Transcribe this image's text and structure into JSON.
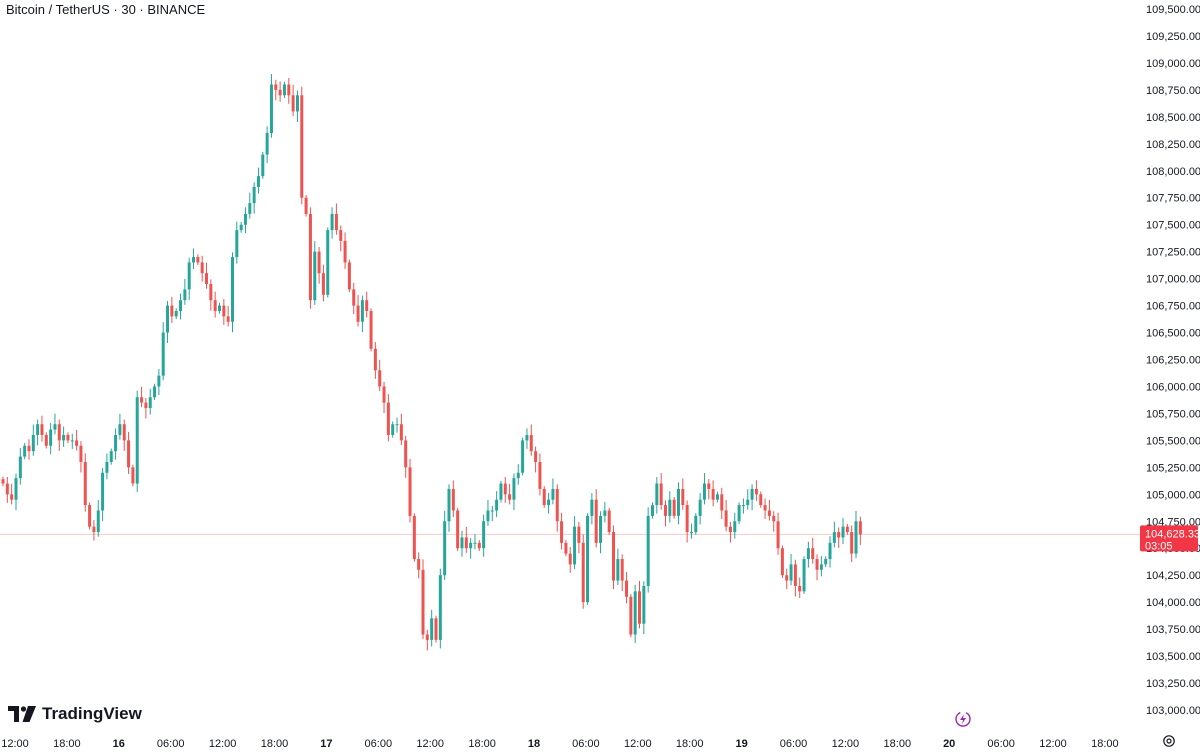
{
  "header": {
    "symbol_title": "Bitcoin / TetherUS · 30 · BINANCE"
  },
  "branding": {
    "logo_text": "TradingView"
  },
  "icons": {
    "logo": "tradingview-logo-icon",
    "bolt": "lightning-icon",
    "settings": "gear-icon"
  },
  "colors": {
    "up": "#26a69a",
    "down": "#ef5350",
    "price_tag": "#f23645",
    "current_line": "#f7c9c9",
    "bolt": "#9c27b0"
  },
  "chart_data": {
    "type": "candlestick",
    "title": "Bitcoin / TetherUS · 30 · BINANCE",
    "interval": "30",
    "exchange": "BINANCE",
    "ylim": [
      102900,
      109550
    ],
    "y_ticks": [
      103000,
      103250,
      103500,
      103750,
      104000,
      104250,
      104500,
      104750,
      105000,
      105250,
      105500,
      105750,
      106000,
      106250,
      106500,
      106750,
      107000,
      107250,
      107500,
      107750,
      108000,
      108250,
      108500,
      108750,
      109000,
      109250,
      109500
    ],
    "y_tick_labels": [
      "103,000.00",
      "103,250.00",
      "103,500.00",
      "103,750.00",
      "104,000.00",
      "104,250.00",
      "104,500.00",
      "104,750.00",
      "105,000.00",
      "105,250.00",
      "105,500.00",
      "105,750.00",
      "106,000.00",
      "106,250.00",
      "106,500.00",
      "106,750.00",
      "107,000.00",
      "107,250.00",
      "107,500.00",
      "107,750.00",
      "108,000.00",
      "108,250.00",
      "108,500.00",
      "108,750.00",
      "109,000.00",
      "109,250.00",
      "109,500.00"
    ],
    "x_tick_labels": [
      "12:00",
      "18:00",
      "16",
      "06:00",
      "12:00",
      "18:00",
      "17",
      "06:00",
      "12:00",
      "18:00",
      "18",
      "06:00",
      "12:00",
      "18:00",
      "19",
      "06:00",
      "12:00",
      "18:00",
      "20",
      "06:00",
      "12:00",
      "18:00"
    ],
    "current_price": 104628.33,
    "current_price_label": "104,628.33",
    "countdown_label": "03:05",
    "closes": [
      105100,
      105000,
      104950,
      105150,
      105350,
      105450,
      105400,
      105550,
      105650,
      105550,
      105450,
      105600,
      105650,
      105500,
      105550,
      105500,
      105500,
      105450,
      105300,
      104900,
      104700,
      104650,
      104850,
      105200,
      105300,
      105400,
      105550,
      105650,
      105500,
      105250,
      105100,
      105900,
      105850,
      105800,
      105900,
      106000,
      106100,
      106500,
      106750,
      106650,
      106700,
      106800,
      106900,
      107150,
      107200,
      107150,
      107050,
      106950,
      106800,
      106700,
      106750,
      106650,
      106600,
      107200,
      107450,
      107500,
      107600,
      107700,
      107850,
      107950,
      108150,
      108350,
      108800,
      108750,
      108700,
      108800,
      108700,
      108550,
      108700,
      107750,
      107600,
      106800,
      107250,
      107050,
      106850,
      107450,
      107600,
      107450,
      107350,
      107150,
      106900,
      106750,
      106600,
      106800,
      106700,
      106350,
      106150,
      106000,
      105850,
      105550,
      105650,
      105650,
      105500,
      105250,
      104800,
      104400,
      104300,
      103700,
      103650,
      103850,
      103650,
      104250,
      104750,
      105050,
      104850,
      104500,
      104600,
      104500,
      104550,
      104550,
      104500,
      104750,
      104850,
      104850,
      104950,
      105100,
      105000,
      104950,
      105150,
      105200,
      105500,
      105550,
      105400,
      105300,
      105050,
      104900,
      104950,
      105050,
      104750,
      104550,
      104450,
      104350,
      104700,
      104550,
      104000,
      104800,
      104950,
      104550,
      104800,
      104850,
      104650,
      104200,
      104400,
      104200,
      104050,
      103700,
      104100,
      103800,
      104150,
      104800,
      104900,
      105100,
      104900,
      104800,
      104950,
      104800,
      105050,
      104900,
      104650,
      104650,
      104800,
      104950,
      105100,
      105050,
      104950,
      105000,
      104850,
      104700,
      104650,
      104750,
      104900,
      104900,
      104950,
      105050,
      105000,
      104900,
      104850,
      104800,
      104750,
      104500,
      104250,
      104200,
      104350,
      104150,
      104100,
      104400,
      104500,
      104400,
      104300,
      104350,
      104400,
      104550,
      104650,
      104600,
      104700,
      104650,
      104450,
      104750,
      104628
    ]
  }
}
